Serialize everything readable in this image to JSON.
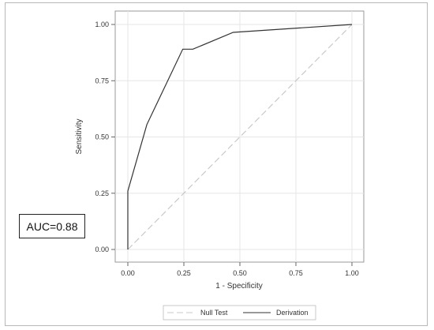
{
  "chart_data": {
    "type": "line",
    "xlabel": "1 - Specificity",
    "ylabel": "Sensitivity",
    "xlim": [
      0,
      1
    ],
    "ylim": [
      0,
      1
    ],
    "xticks": [
      "0.00",
      "0.25",
      "0.50",
      "0.75",
      "1.00"
    ],
    "yticks": [
      "0.00",
      "0.25",
      "0.50",
      "0.75",
      "1.00"
    ],
    "grid": true,
    "legend_position": "bottom",
    "series": [
      {
        "name": "Null Test",
        "style": "dashed",
        "color": "#c8c8c8",
        "x": [
          0,
          1
        ],
        "y": [
          0,
          1
        ]
      },
      {
        "name": "Derivation",
        "style": "solid",
        "color": "#333333",
        "x": [
          0,
          0,
          0.085,
          0.245,
          0.29,
          0.47,
          1.0
        ],
        "y": [
          0,
          0.26,
          0.555,
          0.89,
          0.89,
          0.965,
          1.0
        ]
      }
    ],
    "annotation": "AUC=0.88"
  }
}
